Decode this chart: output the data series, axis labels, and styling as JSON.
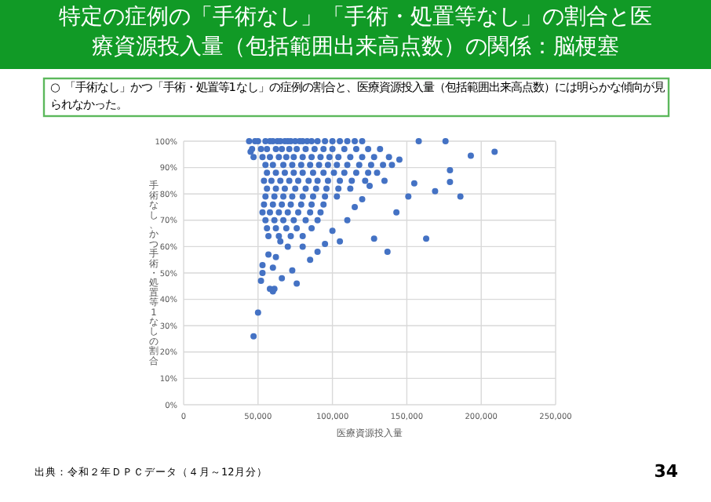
{
  "chart_data": {
    "type": "scatter",
    "title": "特定の症例の「手術なし」「手術・処置等なし」の割合と医療資源投入量（包括範囲出来高点数）の関係：脳梗塞",
    "xlabel": "医療資源投入量",
    "ylabel": "手術なし、かつ手術・処置等1なしの割合",
    "annotations": [
      "○ 「手術なし」かつ「手術・処置等1なし」の症例の割合と、医療資源投入量（包括範囲出来高点数）には明らかな傾向が見られなかった。",
      "出典：令和２年ＤＰＣデータ（４月～12月分）",
      "34"
    ],
    "color": "#4472c4",
    "marker": "circle",
    "grid": true,
    "xlim": [
      0,
      250000
    ],
    "xticks": [
      {
        "value": 0,
        "label": "0"
      },
      {
        "value": 50000,
        "label": "50,000"
      },
      {
        "value": 100000,
        "label": "100,000"
      },
      {
        "value": 150000,
        "label": "150,000"
      },
      {
        "value": 200000,
        "label": "200,000"
      },
      {
        "value": 250000,
        "label": "250,000"
      }
    ],
    "ylim": [
      0,
      100
    ],
    "yticks": [
      {
        "value": 0,
        "label": "0%"
      },
      {
        "value": 10,
        "label": "10%"
      },
      {
        "value": 20,
        "label": "20%"
      },
      {
        "value": 30,
        "label": "30%"
      },
      {
        "value": 40,
        "label": "40%"
      },
      {
        "value": 50,
        "label": "50%"
      },
      {
        "value": 60,
        "label": "60%"
      },
      {
        "value": 70,
        "label": "70%"
      },
      {
        "value": 80,
        "label": "80%"
      },
      {
        "value": 90,
        "label": "90%"
      },
      {
        "value": 100,
        "label": "100%"
      }
    ],
    "x": [
      48000,
      50000,
      55000,
      58000,
      60000,
      63000,
      65000,
      68000,
      70000,
      72000,
      75000,
      78000,
      80000,
      83000,
      86000,
      90000,
      95000,
      100000,
      105000,
      110000,
      115000,
      120000,
      46000,
      52000,
      56000,
      62000,
      66000,
      71000,
      76000,
      82000,
      88000,
      94000,
      100000,
      108000,
      116000,
      124000,
      132000,
      47000,
      53000,
      58000,
      64000,
      69000,
      74000,
      80000,
      86000,
      92000,
      98000,
      104000,
      112000,
      120000,
      128000,
      138000,
      55000,
      60000,
      67000,
      73000,
      79000,
      85000,
      91000,
      97000,
      103000,
      110000,
      118000,
      126000,
      134000,
      56000,
      62000,
      68000,
      74000,
      80000,
      87000,
      94000,
      101000,
      108000,
      116000,
      124000,
      54000,
      59000,
      65000,
      71000,
      77000,
      84000,
      90000,
      97000,
      105000,
      113000,
      122000,
      56000,
      62000,
      68000,
      75000,
      82000,
      89000,
      96000,
      104000,
      112000,
      55000,
      61000,
      67000,
      73000,
      80000,
      87000,
      95000,
      103000,
      54000,
      60000,
      66000,
      72000,
      79000,
      86000,
      94000,
      53000,
      58000,
      64000,
      70000,
      77000,
      85000,
      92000,
      55000,
      61000,
      67000,
      74000,
      82000,
      90000,
      56000,
      62000,
      69000,
      76000,
      86000,
      57000,
      64000,
      72000,
      80000,
      45000,
      44000,
      47000,
      50000,
      52000,
      53000,
      53000,
      58000,
      60000,
      61000,
      60000,
      66000,
      73000,
      76000,
      209000,
      193000,
      176000,
      186000,
      179000,
      169000,
      179000,
      163000,
      143000,
      137000,
      128000,
      158000,
      155000,
      151000,
      130000,
      135000,
      140000,
      145000,
      125000,
      120000,
      115000,
      110000,
      105000,
      100000,
      95000,
      90000,
      85000,
      80000,
      70000,
      65000,
      62000,
      57000
    ],
    "values": [
      100,
      100,
      100,
      100,
      100,
      100,
      100,
      100,
      100,
      100,
      100,
      100,
      100,
      100,
      100,
      100,
      100,
      100,
      100,
      100,
      100,
      100,
      97,
      97,
      97,
      97,
      97,
      97,
      97,
      97,
      97,
      97,
      97,
      97,
      97,
      97,
      97,
      94,
      94,
      94,
      94,
      94,
      94,
      94,
      94,
      94,
      94,
      94,
      94,
      94,
      94,
      94,
      91,
      91,
      91,
      91,
      91,
      91,
      91,
      91,
      91,
      91,
      91,
      91,
      91,
      88,
      88,
      88,
      88,
      88,
      88,
      88,
      88,
      88,
      88,
      88,
      85,
      85,
      85,
      85,
      85,
      85,
      85,
      85,
      85,
      85,
      85,
      82,
      82,
      82,
      82,
      82,
      82,
      82,
      82,
      82,
      79,
      79,
      79,
      79,
      79,
      79,
      79,
      79,
      76,
      76,
      76,
      76,
      76,
      76,
      76,
      73,
      73,
      73,
      73,
      73,
      73,
      73,
      70,
      70,
      70,
      70,
      70,
      70,
      67,
      67,
      67,
      67,
      67,
      64,
      64,
      64,
      64,
      96,
      100,
      26,
      35,
      47,
      50,
      53,
      44,
      43,
      44,
      52,
      48,
      51,
      46,
      96,
      94.5,
      100,
      79,
      84.5,
      81,
      89,
      63,
      73,
      58,
      63,
      100,
      84,
      79,
      88,
      85,
      91,
      93,
      83,
      78,
      75,
      70,
      62,
      66,
      61,
      58,
      55,
      60,
      60,
      62,
      56,
      57
    ]
  }
}
